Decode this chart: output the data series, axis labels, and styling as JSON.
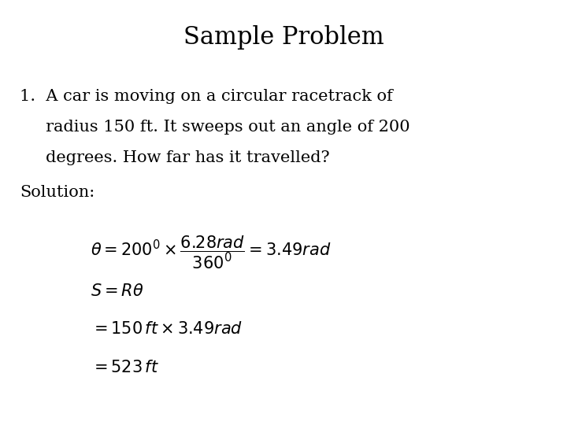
{
  "title": "Sample Problem",
  "title_fontsize": 22,
  "background_color": "#ffffff",
  "text_color": "#000000",
  "problem_text_line1": "1.  A car is moving on a circular racetrack of",
  "problem_text_line2": "     radius 150 ft. It sweeps out an angle of 200",
  "problem_text_line3": "     degrees. How far has it travelled?",
  "solution_label": "Solution:",
  "eq1": "$\\theta = 200^{0} \\times \\dfrac{6.28rad}{360^{0}} = 3.49rad$",
  "eq2": "$S = R\\theta$",
  "eq3": "$= 150\\,ft \\times 3.49rad$",
  "eq4": "$= 523\\,ft$",
  "body_fontsize": 15,
  "eq_fontsize": 15,
  "solution_fontsize": 15
}
